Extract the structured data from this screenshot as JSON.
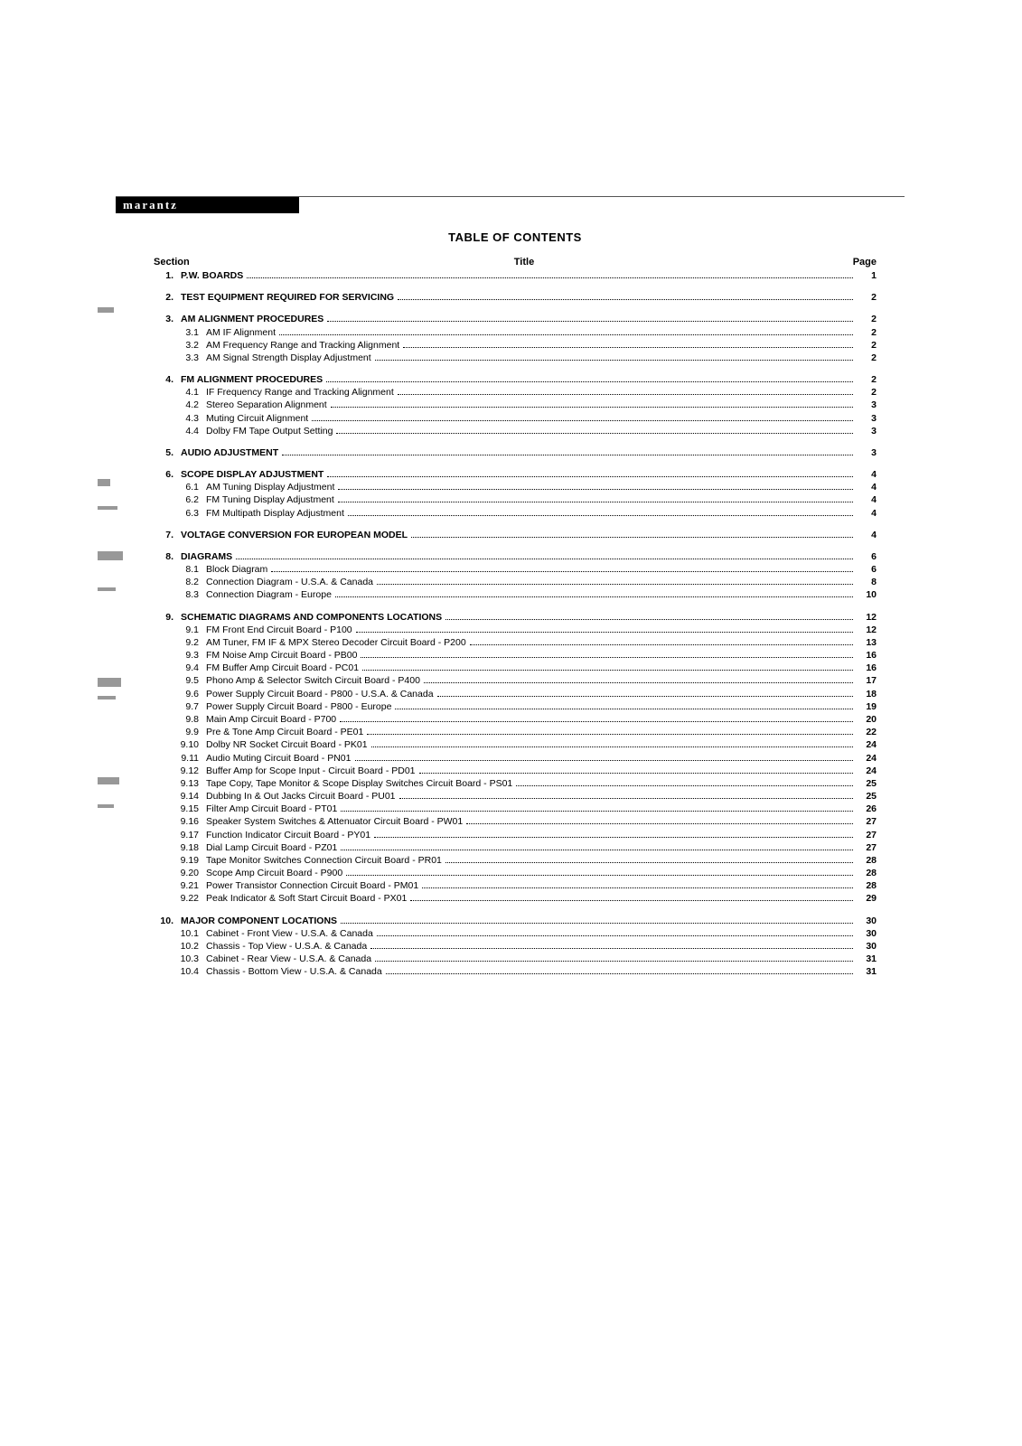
{
  "brand": "marantz",
  "title": "TABLE OF CONTENTS",
  "headers": {
    "section": "Section",
    "title": "Title",
    "page": "Page"
  },
  "sections": [
    {
      "num": "1.",
      "label": "P.W. BOARDS",
      "page": "1",
      "subs": []
    },
    {
      "num": "2.",
      "label": "TEST EQUIPMENT REQUIRED FOR SERVICING",
      "page": "2",
      "subs": []
    },
    {
      "num": "3.",
      "label": "AM ALIGNMENT PROCEDURES",
      "page": "2",
      "subs": [
        {
          "num": "3.1",
          "label": "AM IF Alignment",
          "page": "2"
        },
        {
          "num": "3.2",
          "label": "AM Frequency Range and Tracking Alignment",
          "page": "2"
        },
        {
          "num": "3.3",
          "label": "AM Signal Strength Display Adjustment",
          "page": "2"
        }
      ]
    },
    {
      "num": "4.",
      "label": "FM ALIGNMENT PROCEDURES",
      "page": "2",
      "subs": [
        {
          "num": "4.1",
          "label": "IF Frequency Range and Tracking Alignment",
          "page": "2"
        },
        {
          "num": "4.2",
          "label": "Stereo Separation Alignment",
          "page": "3"
        },
        {
          "num": "4.3",
          "label": "Muting Circuit Alignment",
          "page": "3"
        },
        {
          "num": "4.4",
          "label": "Dolby FM Tape Output Setting",
          "page": "3"
        }
      ]
    },
    {
      "num": "5.",
      "label": "AUDIO ADJUSTMENT",
      "page": "3",
      "subs": []
    },
    {
      "num": "6.",
      "label": "SCOPE DISPLAY ADJUSTMENT",
      "page": "4",
      "subs": [
        {
          "num": "6.1",
          "label": "AM Tuning Display Adjustment",
          "page": "4"
        },
        {
          "num": "6.2",
          "label": "FM Tuning Display Adjustment",
          "page": "4"
        },
        {
          "num": "6.3",
          "label": "FM Multipath Display Adjustment",
          "page": "4"
        }
      ]
    },
    {
      "num": "7.",
      "label": "VOLTAGE CONVERSION FOR EUROPEAN MODEL",
      "page": "4",
      "subs": []
    },
    {
      "num": "8.",
      "label": "DIAGRAMS",
      "page": "6",
      "subs": [
        {
          "num": "8.1",
          "label": "Block Diagram",
          "page": "6"
        },
        {
          "num": "8.2",
          "label": "Connection Diagram - U.S.A. & Canada",
          "page": "8"
        },
        {
          "num": "8.3",
          "label": "Connection Diagram - Europe",
          "page": "10"
        }
      ]
    },
    {
      "num": "9.",
      "label": "SCHEMATIC DIAGRAMS AND COMPONENTS LOCATIONS",
      "page": "12",
      "subs": [
        {
          "num": "9.1",
          "label": "FM Front End Circuit Board - P100",
          "page": "12"
        },
        {
          "num": "9.2",
          "label": "AM Tuner, FM IF & MPX Stereo Decoder Circuit Board - P200",
          "page": "13"
        },
        {
          "num": "9.3",
          "label": "FM Noise Amp Circuit Board - PB00",
          "page": "16"
        },
        {
          "num": "9.4",
          "label": "FM Buffer Amp Circuit Board - PC01",
          "page": "16"
        },
        {
          "num": "9.5",
          "label": "Phono Amp & Selector Switch Circuit Board - P400",
          "page": "17"
        },
        {
          "num": "9.6",
          "label": "Power Supply Circuit Board - P800 - U.S.A. & Canada",
          "page": "18"
        },
        {
          "num": "9.7",
          "label": "Power Supply Circuit Board - P800 - Europe",
          "page": "19"
        },
        {
          "num": "9.8",
          "label": "Main Amp Circuit Board - P700",
          "page": "20"
        },
        {
          "num": "9.9",
          "label": "Pre & Tone Amp Circuit Board - PE01",
          "page": "22"
        },
        {
          "num": "9.10",
          "label": "Dolby NR Socket Circuit Board - PK01",
          "page": "24"
        },
        {
          "num": "9.11",
          "label": "Audio Muting Circuit Board - PN01",
          "page": "24"
        },
        {
          "num": "9.12",
          "label": "Buffer Amp for Scope Input - Circuit Board - PD01",
          "page": "24"
        },
        {
          "num": "9.13",
          "label": "Tape Copy, Tape Monitor & Scope Display Switches Circuit Board - PS01",
          "page": "25"
        },
        {
          "num": "9.14",
          "label": "Dubbing In & Out Jacks Circuit Board - PU01",
          "page": "25"
        },
        {
          "num": "9.15",
          "label": "Filter Amp Circuit Board - PT01",
          "page": "26"
        },
        {
          "num": "9.16",
          "label": "Speaker System Switches & Attenuator Circuit Board - PW01",
          "page": "27"
        },
        {
          "num": "9.17",
          "label": "Function Indicator Circuit Board - PY01",
          "page": "27"
        },
        {
          "num": "9.18",
          "label": "Dial Lamp Circuit Board - PZ01",
          "page": "27"
        },
        {
          "num": "9.19",
          "label": "Tape Monitor Switches Connection Circuit Board - PR01",
          "page": "28"
        },
        {
          "num": "9.20",
          "label": "Scope Amp Circuit Board - P900",
          "page": "28"
        },
        {
          "num": "9.21",
          "label": "Power Transistor Connection Circuit Board - PM01",
          "page": "28"
        },
        {
          "num": "9.22",
          "label": "Peak Indicator & Soft Start Circuit Board - PX01",
          "page": "29"
        }
      ]
    },
    {
      "num": "10.",
      "label": "MAJOR COMPONENT LOCATIONS",
      "page": "30",
      "subs": [
        {
          "num": "10.1",
          "label": "Cabinet - Front View - U.S.A. & Canada",
          "page": "30"
        },
        {
          "num": "10.2",
          "label": "Chassis - Top View - U.S.A. & Canada",
          "page": "30"
        },
        {
          "num": "10.3",
          "label": "Cabinet - Rear View - U.S.A. & Canada",
          "page": "31"
        },
        {
          "num": "10.4",
          "label": "Chassis - Bottom View - U.S.A. & Canada",
          "page": "31"
        }
      ]
    }
  ]
}
